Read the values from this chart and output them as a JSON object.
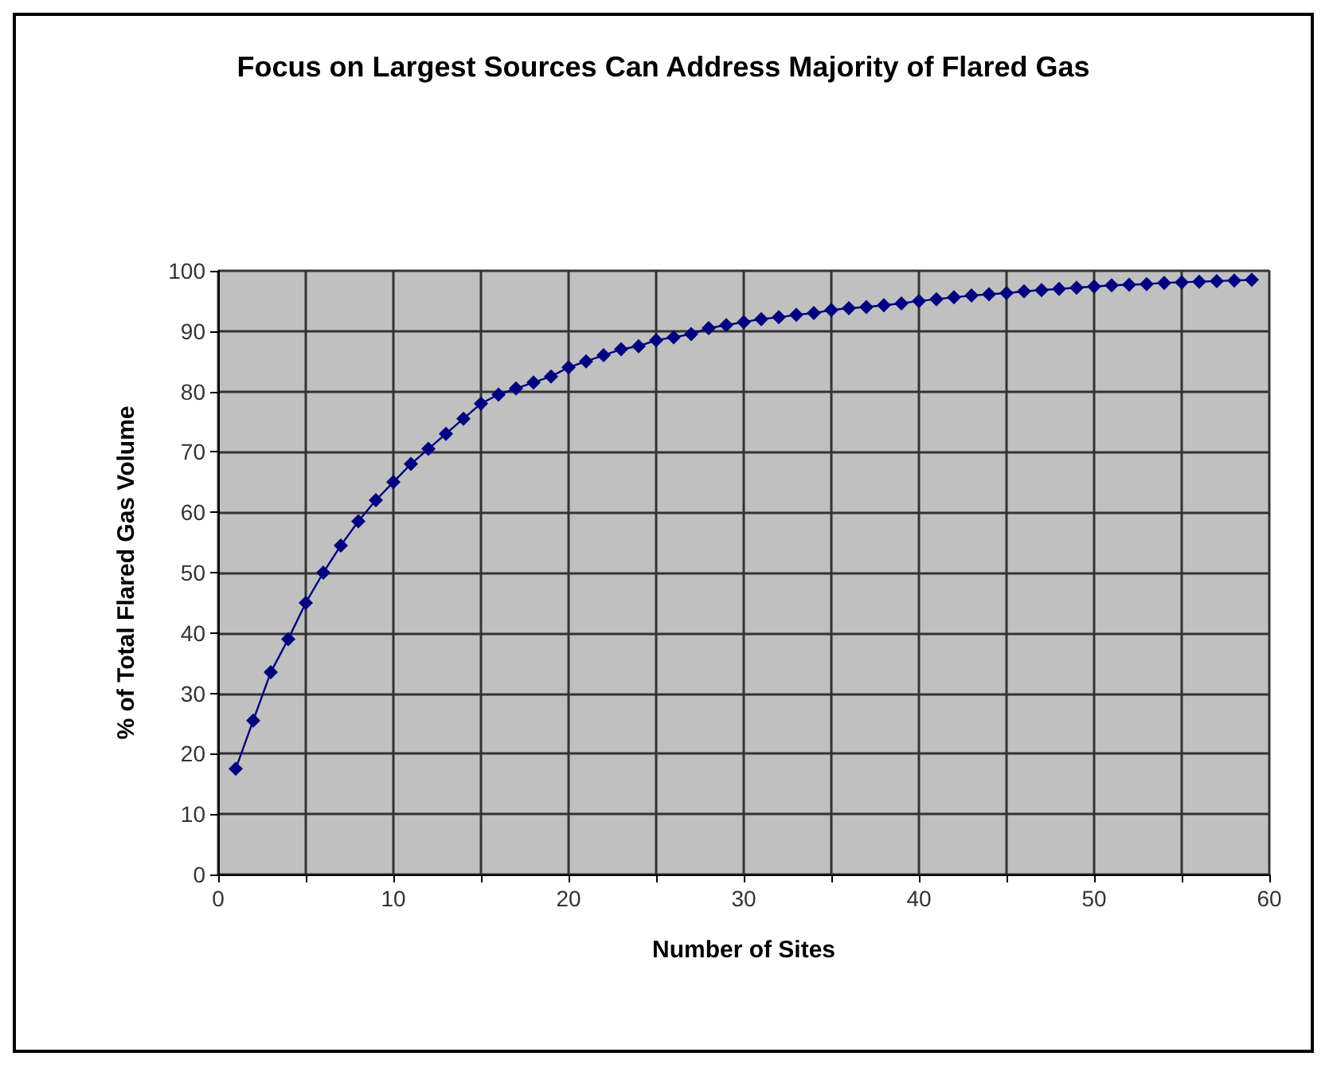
{
  "chart_data": {
    "type": "line",
    "title": "Focus on Largest Sources Can Address Majority of Flared Gas",
    "xlabel": "Number of Sites",
    "ylabel": "% of Total Flared Gas Volume",
    "x": [
      1,
      2,
      3,
      4,
      5,
      6,
      7,
      8,
      9,
      10,
      11,
      12,
      13,
      14,
      15,
      16,
      17,
      18,
      19,
      20,
      21,
      22,
      23,
      24,
      25,
      26,
      27,
      28,
      29,
      30,
      31,
      32,
      33,
      34,
      35,
      36,
      37,
      38,
      39,
      40,
      41,
      42,
      43,
      44,
      45,
      46,
      47,
      48,
      49,
      50,
      51,
      52,
      53,
      54,
      55,
      56,
      57,
      58,
      59
    ],
    "series": [
      {
        "color": "#000080",
        "values": [
          17.5,
          25.5,
          33.5,
          39,
          45,
          50,
          54.5,
          58.5,
          62,
          65,
          68,
          70.5,
          73,
          75.5,
          78,
          79.5,
          80.5,
          81.5,
          82.5,
          84,
          85,
          86,
          87,
          87.5,
          88.5,
          89,
          89.5,
          90.5,
          91,
          91.5,
          92,
          92.3,
          92.7,
          93,
          93.5,
          93.8,
          94,
          94.3,
          94.6,
          95,
          95.3,
          95.6,
          95.9,
          96.1,
          96.3,
          96.6,
          96.8,
          97,
          97.2,
          97.4,
          97.6,
          97.7,
          97.8,
          98,
          98.1,
          98.2,
          98.3,
          98.4,
          98.5
        ]
      }
    ],
    "xlim": [
      0,
      60
    ],
    "xticks": [
      0,
      {
        "value": 5,
        "label": null
      },
      10,
      {
        "value": 15,
        "label": null
      },
      20,
      {
        "value": 25,
        "label": null
      },
      30,
      {
        "value": 35,
        "label": null
      },
      40,
      {
        "value": 45,
        "label": null
      },
      50,
      {
        "value": 55,
        "label": null
      },
      60
    ],
    "ylim": [
      0,
      100
    ],
    "yticks": [
      0,
      10,
      20,
      30,
      40,
      50,
      60,
      70,
      80,
      90,
      100
    ],
    "grid": true,
    "marker": "diamond",
    "line_style": "solid"
  }
}
